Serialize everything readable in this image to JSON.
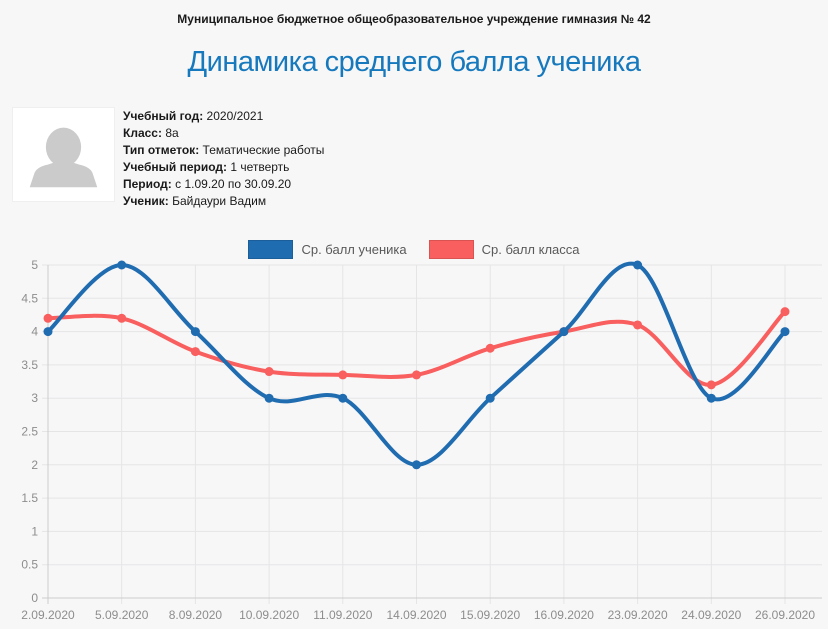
{
  "page": {
    "background": "#f7f7f8",
    "header": "Муниципальное бюджетное общеобразовательное учреждение гимназия № 42",
    "title": "Динамика среднего балла ученика",
    "title_color": "#1779bd"
  },
  "student_info": {
    "avatar": "person-placeholder",
    "rows": [
      {
        "label": "Учебный год:",
        "value": "2020/2021"
      },
      {
        "label": "Класс:",
        "value": "8а"
      },
      {
        "label": "Тип отметок:",
        "value": "Тематические работы"
      },
      {
        "label": "Учебный период:",
        "value": "1 четверть"
      },
      {
        "label": "Период:",
        "value": "с 1.09.20 по 30.09.20"
      },
      {
        "label": "Ученик:",
        "value": "Байдаури Вадим"
      }
    ]
  },
  "chart_data": {
    "type": "line",
    "title": "Динамика среднего балла ученика",
    "categories": [
      "2.09.2020",
      "5.09.2020",
      "8.09.2020",
      "10.09.2020",
      "11.09.2020",
      "14.09.2020",
      "15.09.2020",
      "16.09.2020",
      "23.09.2020",
      "24.09.2020",
      "26.09.2020"
    ],
    "series": [
      {
        "name": "Ср. балл ученика",
        "color": "#206cb0",
        "values": [
          4,
          5,
          4,
          3,
          3,
          2,
          3,
          4,
          5,
          3,
          4
        ]
      },
      {
        "name": "Ср. балл класса",
        "color": "#f85f5e",
        "values": [
          4.2,
          4.2,
          3.7,
          3.4,
          3.35,
          3.35,
          3.75,
          4.0,
          4.1,
          3.2,
          4.3
        ]
      }
    ],
    "xlabel": "",
    "ylabel": "",
    "ylim": [
      0,
      5
    ],
    "ytick_step": 0.5,
    "grid": true,
    "legend_position": "top",
    "style": {
      "grid_color": "#e5e5e5",
      "axis_color": "#cccccc",
      "tick_text_color": "#8d8d8d",
      "line_width": 4,
      "point_radius": 4.5
    }
  }
}
